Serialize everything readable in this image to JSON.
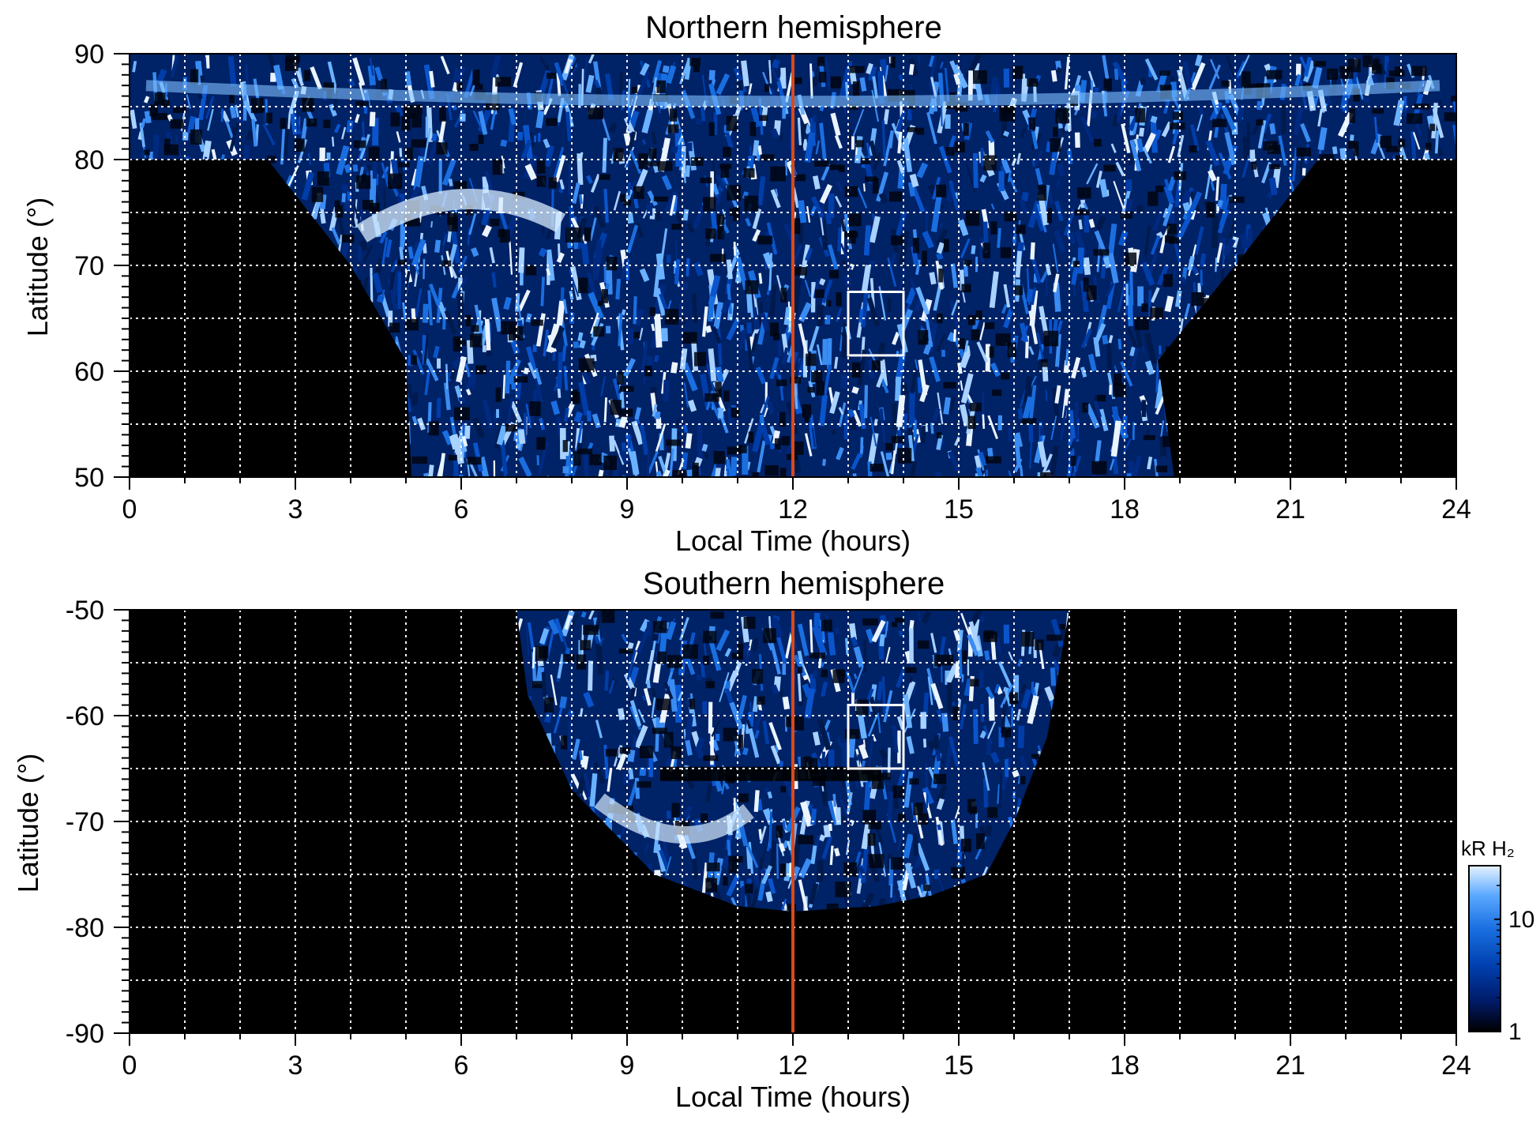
{
  "chart_data": [
    {
      "type": "heatmap",
      "title": "Northern hemisphere",
      "xlabel": "Local Time (hours)",
      "ylabel": "Latitude (°)",
      "xlim": [
        0,
        24
      ],
      "ylim": [
        50,
        90
      ],
      "xticks": [
        "0",
        "3",
        "6",
        "9",
        "12",
        "15",
        "18",
        "21",
        "24"
      ],
      "yticks": [
        "90",
        "80",
        "70",
        "60",
        "50"
      ],
      "x_ticks_values": [
        0,
        3,
        6,
        9,
        12,
        15,
        18,
        21,
        24
      ],
      "y_ticks_values": [
        90,
        80,
        70,
        60,
        50
      ],
      "grid": true,
      "grid_x_step": 1,
      "grid_y_step": 5,
      "reference_line": {
        "x": 12,
        "color": "#d84a1b"
      },
      "box": {
        "x0": 13,
        "x1": 14,
        "y0": 61.5,
        "y1": 67.5
      },
      "coverage_boundary": [
        [
          4.0,
          70
        ],
        [
          5.0,
          61
        ],
        [
          5.1,
          50
        ],
        [
          18.9,
          50
        ],
        [
          18.6,
          61
        ],
        [
          20.0,
          70
        ],
        [
          21.5,
          80
        ]
      ],
      "polar_cap_lat": 80
    },
    {
      "type": "heatmap",
      "title": "Southern hemisphere",
      "xlabel": "Local Time (hours)",
      "ylabel": "Latitude (°)",
      "xlim": [
        0,
        24
      ],
      "ylim": [
        -90,
        -50
      ],
      "xticks": [
        "0",
        "3",
        "6",
        "9",
        "12",
        "15",
        "18",
        "21",
        "24"
      ],
      "yticks": [
        "-50",
        "-60",
        "-70",
        "-80",
        "-90"
      ],
      "x_ticks_values": [
        0,
        3,
        6,
        9,
        12,
        15,
        18,
        21,
        24
      ],
      "y_ticks_values": [
        -50,
        -60,
        -70,
        -80,
        -90
      ],
      "grid": true,
      "grid_x_step": 1,
      "grid_y_step": 5,
      "reference_line": {
        "x": 12,
        "color": "#d84a1b"
      },
      "box": {
        "x0": 13,
        "x1": 14,
        "y0": -65,
        "y1": -59
      },
      "coverage_boundary": [
        [
          7.0,
          -50
        ],
        [
          7.2,
          -58
        ],
        [
          8.0,
          -67
        ],
        [
          9.5,
          -75
        ],
        [
          11.0,
          -78
        ],
        [
          12.0,
          -78.5
        ],
        [
          13.5,
          -78
        ],
        [
          14.5,
          -77
        ],
        [
          15.5,
          -75
        ],
        [
          16.0,
          -70
        ],
        [
          16.6,
          -62
        ],
        [
          17.0,
          -50
        ]
      ]
    }
  ],
  "colorbar": {
    "title": "kR H₂",
    "ticks": [
      "10",
      "1"
    ],
    "tick_values": [
      10,
      1
    ],
    "scale": "log",
    "colors": [
      "#000000",
      "#001a66",
      "#0040b0",
      "#1a6fe0",
      "#5aa8ff",
      "#e6f2ff"
    ]
  }
}
